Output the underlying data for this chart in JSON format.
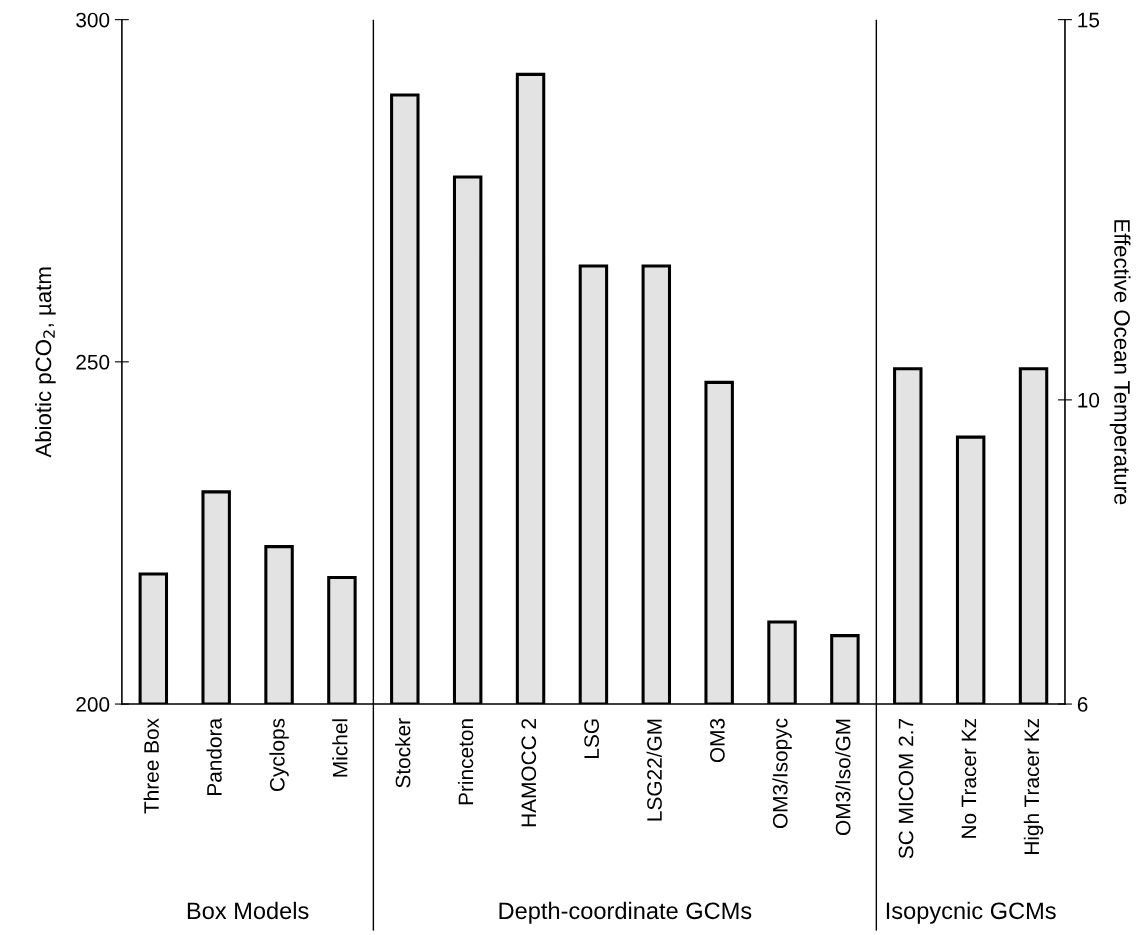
{
  "chart_data": {
    "type": "bar",
    "categories": [
      "Three Box",
      "Pandora",
      "Cyclops",
      "Michel",
      "Stocker",
      "Princeton",
      "HAMOCC 2",
      "LSG",
      "LSG22/GM",
      "OM3",
      "OM3/Isopyc",
      "OM3/Iso/GM",
      "SC MICOM 2.7",
      "No Tracer Kz",
      "High Tracer Kz"
    ],
    "values": [
      219,
      231,
      223,
      218.5,
      289,
      277,
      292,
      264,
      264,
      247,
      212,
      210,
      249,
      239,
      249
    ],
    "color": "#e3e3e3",
    "ylabel": "Abiotic pCO$_{2}$, µatm",
    "y2label": "Effective Ocean Temperature",
    "ylim": [
      200,
      300
    ],
    "yticks": [
      200,
      250,
      300
    ],
    "y2lim": [
      6,
      15
    ],
    "y2ticks": [
      6,
      10,
      15
    ],
    "annotations": [
      "Box Models",
      "Depth-coordinate GCMs",
      "Isopycnic GCMs"
    ],
    "grid": false,
    "legend": false
  }
}
